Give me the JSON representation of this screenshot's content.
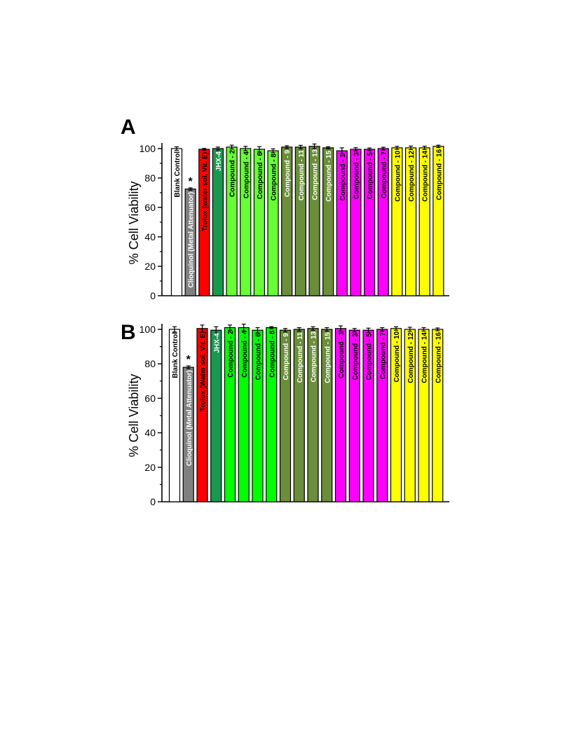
{
  "chart_data": [
    {
      "type": "bar",
      "panel_label": "A",
      "ylabel": "% Cell Viability",
      "ylim": [
        0,
        100
      ],
      "yticks": [
        0,
        20,
        40,
        60,
        80,
        100
      ],
      "categories": [
        "Blank Control",
        "Clioquinol (Metal Attenuator)",
        "Trolox (water sol. Vit. E)",
        "JHX-4",
        "Compound - 2",
        "Compound - 4",
        "Compound - 6",
        "Compound - 8",
        "Compound - 9",
        "Compound - 11",
        "Compound - 13",
        "Compound - 15",
        "Compound - 1",
        "Compound - 3",
        "Compound - 5",
        "Compound - 7",
        "Compound - 10",
        "Compound - 12",
        "Compound - 14",
        "Compound - 16"
      ],
      "values": [
        100,
        72.5,
        99.5,
        100,
        101,
        100,
        99.5,
        98.5,
        101,
        101,
        101.5,
        100.5,
        98.5,
        99.5,
        99.5,
        100,
        100.5,
        100.5,
        100.5,
        101.5
      ],
      "errors": [
        1.2,
        0.8,
        0.6,
        1.0,
        1.3,
        1.5,
        1.8,
        1.3,
        0.9,
        1.2,
        1.6,
        0.7,
        2.0,
        1.1,
        0.9,
        0.9,
        1.0,
        1.2,
        1.1,
        0.8
      ],
      "bar_colors": [
        "#ffffff",
        "#808080",
        "#ff0000",
        "#1a9850",
        "#66ff33",
        "#66ff33",
        "#66ff33",
        "#66ff33",
        "#6b8e3a",
        "#6b8e3a",
        "#6b8e3a",
        "#6b8e3a",
        "#ff00ff",
        "#ff00ff",
        "#ff00ff",
        "#ff00ff",
        "#ffff00",
        "#ffff00",
        "#ffff00",
        "#ffff00"
      ],
      "label_colors": [
        "#000000",
        "#ffffff",
        "#000000",
        "#ffffff",
        "#000000",
        "#000000",
        "#000000",
        "#000000",
        "#ffffff",
        "#ffffff",
        "#ffffff",
        "#ffffff",
        "#000000",
        "#000000",
        "#000000",
        "#000000",
        "#000000",
        "#000000",
        "#000000",
        "#000000"
      ],
      "significance": [
        "",
        "*",
        "",
        "",
        "",
        "",
        "",
        "",
        "",
        "",
        "",
        "",
        "",
        "",
        "",
        "",
        "",
        "",
        "",
        ""
      ]
    },
    {
      "type": "bar",
      "panel_label": "B",
      "ylabel": "% Cell Viability",
      "ylim": [
        0,
        100
      ],
      "yticks": [
        0,
        20,
        40,
        60,
        80,
        100
      ],
      "categories": [
        "Blank Control",
        "Clioquinol (Metal Attenuator)",
        "Trolox (Water sol. Vit. E)",
        "JHX-4",
        "Compound - 2",
        "Compound - 4",
        "Compound - 6",
        "Compound - 8",
        "Compound - 9",
        "Compound - 11",
        "Compound - 13",
        "Compound - 15",
        "Compound - 1",
        "Compound - 3",
        "Compound - 5",
        "Compound - 7",
        "Compound - 10",
        "Compound - 12",
        "Compound - 14",
        "Compound - 16"
      ],
      "values": [
        100,
        78,
        100.5,
        99.5,
        101,
        101,
        99.5,
        101,
        99.5,
        100,
        100.5,
        100,
        100.5,
        99.5,
        99.5,
        100,
        100.5,
        100,
        100,
        100
      ],
      "errors": [
        1.5,
        0.8,
        2.0,
        2.0,
        1.5,
        2.0,
        1.5,
        0.6,
        1.0,
        1.0,
        1.0,
        1.0,
        1.5,
        1.0,
        1.2,
        1.0,
        1.0,
        1.2,
        1.0,
        0.8
      ],
      "bar_colors": [
        "#ffffff",
        "#808080",
        "#ff0000",
        "#1a9850",
        "#00ff00",
        "#00ff00",
        "#00ff00",
        "#00ff00",
        "#6b8e3a",
        "#6b8e3a",
        "#6b8e3a",
        "#6b8e3a",
        "#ff00ff",
        "#ff00ff",
        "#ff00ff",
        "#ff00ff",
        "#ffff00",
        "#ffff00",
        "#ffff00",
        "#ffff00"
      ],
      "label_colors": [
        "#000000",
        "#ffffff",
        "#000000",
        "#ffffff",
        "#000000",
        "#000000",
        "#000000",
        "#000000",
        "#ffffff",
        "#ffffff",
        "#ffffff",
        "#ffffff",
        "#000000",
        "#000000",
        "#000000",
        "#000000",
        "#000000",
        "#000000",
        "#000000",
        "#000000"
      ],
      "significance": [
        "",
        "*",
        "",
        "",
        "",
        "",
        "",
        "",
        "",
        "",
        "",
        "",
        "",
        "",
        "",
        "",
        "",
        "",
        "",
        ""
      ]
    }
  ]
}
